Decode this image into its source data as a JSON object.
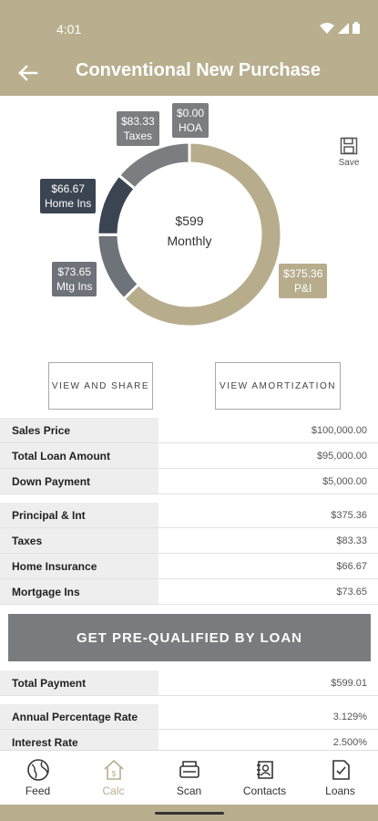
{
  "status": {
    "time": "4:01"
  },
  "header": {
    "title": "Conventional New Purchase"
  },
  "chart_data": {
    "type": "pie",
    "center_amount": "$599",
    "center_label": "Monthly",
    "slices": [
      {
        "label": "P&I",
        "amount": "$375.36",
        "value": 375.36,
        "color": "#b7ad8d"
      },
      {
        "label": "Mtg Ins",
        "amount": "$73.65",
        "value": 73.65,
        "color": "#6e737a"
      },
      {
        "label": "Home Ins",
        "amount": "$66.67",
        "value": 66.67,
        "color": "#3b4552"
      },
      {
        "label": "Taxes",
        "amount": "$83.33",
        "value": 83.33,
        "color": "#7b7d80"
      },
      {
        "label": "HOA",
        "amount": "$0.00",
        "value": 0,
        "color": "#555555"
      }
    ]
  },
  "save_label": "Save",
  "buttons": {
    "view_share": "VIEW AND SHARE",
    "view_amortization": "VIEW AMORTIZATION",
    "prequal": "GET PRE-QUALIFIED BY LOAN"
  },
  "loan_rows": [
    {
      "label": "Sales Price",
      "value": "$100,000.00"
    },
    {
      "label": "Total Loan Amount",
      "value": "$95,000.00"
    },
    {
      "label": "Down Payment",
      "value": "$5,000.00"
    }
  ],
  "payment_rows": [
    {
      "label": "Principal & Int",
      "value": "$375.36"
    },
    {
      "label": "Taxes",
      "value": "$83.33"
    },
    {
      "label": "Home Insurance",
      "value": "$66.67"
    },
    {
      "label": "Mortgage Ins",
      "value": "$73.65"
    }
  ],
  "total_row": {
    "label": "Total Payment",
    "value": "$599.01"
  },
  "rate_rows": [
    {
      "label": "Annual Percentage Rate",
      "value": "3.129%"
    },
    {
      "label": "Interest Rate",
      "value": "2.500%"
    }
  ],
  "nav": [
    {
      "label": "Feed",
      "icon": "globe-icon"
    },
    {
      "label": "Calc",
      "icon": "home-calc-icon",
      "active": true
    },
    {
      "label": "Scan",
      "icon": "scanner-icon"
    },
    {
      "label": "Contacts",
      "icon": "contacts-icon"
    },
    {
      "label": "Loans",
      "icon": "loan-document-icon"
    }
  ]
}
